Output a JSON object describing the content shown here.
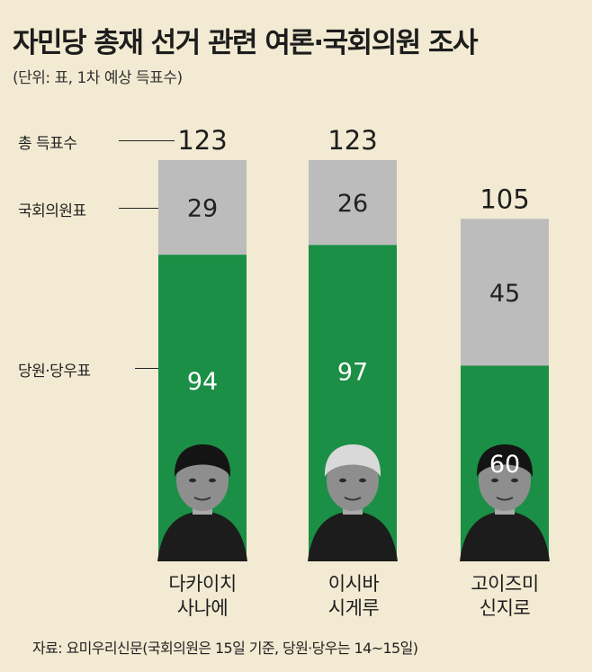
{
  "title": "자민당 총재 선거 관련 여론·국회의원 조사",
  "subtitle": "(단위: 표, 1차 예상 득표수)",
  "row_labels": {
    "total": "총 득표수",
    "lawmakers": "국회의원표",
    "members": "당원·당우표"
  },
  "source": "자료: 요미우리신문(국회의원은 15일 기준, 당원·당우는 14~15일)",
  "colors": {
    "lawmakers": "#bcbcbc",
    "members": "#1b8f45",
    "background": "#f2ead2"
  },
  "candidates": [
    {
      "name_line1": "다카이치",
      "name_line2": "사나에"
    },
    {
      "name_line1": "이시바",
      "name_line2": "시게루"
    },
    {
      "name_line1": "고이즈미",
      "name_line2": "신지로"
    }
  ],
  "chart_data": {
    "type": "bar",
    "stacked": true,
    "categories": [
      "다카이치 사나에",
      "이시바 시게루",
      "고이즈미 신지로"
    ],
    "series": [
      {
        "name": "당원·당우표",
        "values": [
          94,
          97,
          60
        ]
      },
      {
        "name": "국회의원표",
        "values": [
          29,
          26,
          45
        ]
      }
    ],
    "totals": [
      123,
      123,
      105
    ],
    "title": "자민당 총재 선거 관련 여론·국회의원 조사",
    "xlabel": "",
    "ylabel": "",
    "ylim": [
      0,
      123
    ],
    "grid": false,
    "legend": "left"
  }
}
